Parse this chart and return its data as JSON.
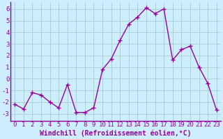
{
  "x": [
    0,
    1,
    2,
    3,
    4,
    5,
    6,
    7,
    8,
    9,
    10,
    11,
    12,
    13,
    14,
    15,
    16,
    17,
    18,
    19,
    20,
    21,
    22,
    23
  ],
  "y": [
    -2.2,
    -2.6,
    -1.2,
    -1.4,
    -2.0,
    -2.5,
    -0.5,
    -2.9,
    -2.9,
    -2.5,
    0.8,
    1.7,
    3.3,
    4.7,
    5.3,
    6.1,
    5.6,
    6.0,
    1.6,
    2.5,
    2.8,
    1.0,
    -0.4,
    -2.7
  ],
  "line_color": "#990099",
  "marker": "+",
  "marker_size": 4,
  "marker_lw": 1.0,
  "bg_color": "#cceeff",
  "grid_color": "#aacccc",
  "text_color": "#990099",
  "xlabel": "Windchill (Refroidissement éolien,°C)",
  "ylabel_ticks": [
    -3,
    -2,
    -1,
    0,
    1,
    2,
    3,
    4,
    5,
    6
  ],
  "xlim": [
    -0.5,
    23.5
  ],
  "ylim": [
    -3.6,
    6.6
  ],
  "tick_fontsize": 6.5,
  "label_fontsize": 7.0,
  "linewidth": 1.0
}
